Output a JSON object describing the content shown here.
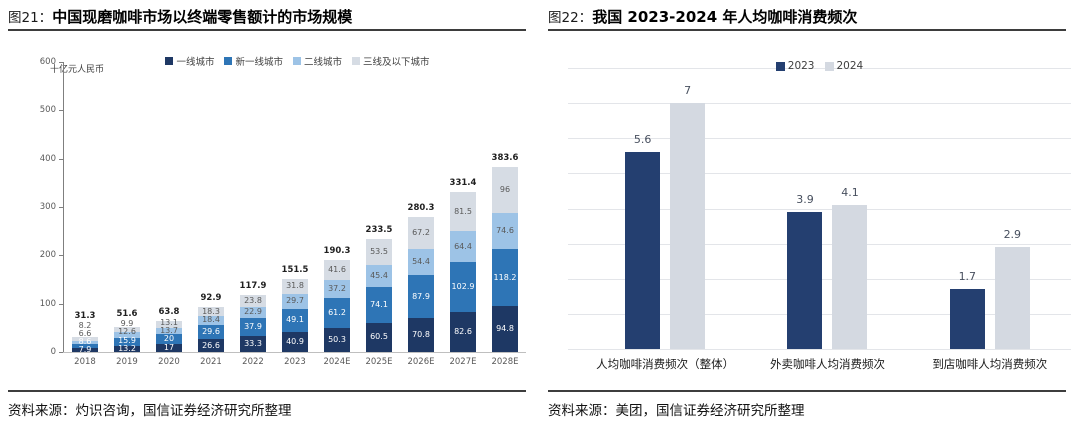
{
  "panels": [
    {
      "figure_label": "图21：",
      "title": "中国现磨咖啡市场以终端零售额计的市场规模",
      "source": "资料来源：灼识咨询，国信证券经济研究所整理"
    },
    {
      "figure_label": "图22：",
      "title": "我国 2023-2024 年人均咖啡消费频次",
      "source": "资料来源：美团，国信证券经济研究所整理"
    }
  ],
  "chart_data": [
    {
      "type": "bar",
      "stacked": true,
      "title": "中国现磨咖啡市场以终端零售额计的市场规模",
      "unit_label": "十亿元人民币",
      "categories": [
        "2018",
        "2019",
        "2020",
        "2021",
        "2022",
        "2023",
        "2024E",
        "2025E",
        "2026E",
        "2027E",
        "2028E"
      ],
      "series": [
        {
          "name": "一线城市",
          "color": "#1e3864",
          "label_color": "#ffffff",
          "values": [
            7.9,
            13.2,
            17,
            26.6,
            33.3,
            40.9,
            50.3,
            60.5,
            70.8,
            82.6,
            94.8
          ]
        },
        {
          "name": "新一线城市",
          "color": "#2e75b6",
          "label_color": "#ffffff",
          "values": [
            8.6,
            15.9,
            20,
            29.6,
            37.9,
            49.1,
            61.2,
            74.1,
            87.9,
            102.9,
            118.2
          ]
        },
        {
          "name": "二线城市",
          "color": "#9dc3e6",
          "label_color": "#595959",
          "values": [
            6.6,
            12.6,
            13.7,
            18.4,
            22.9,
            29.7,
            37.2,
            45.4,
            54.4,
            64.4,
            74.6
          ]
        },
        {
          "name": "三线及以下城市",
          "color": "#d6dce4",
          "label_color": "#595959",
          "values": [
            8.2,
            9.9,
            13.1,
            18.3,
            23.8,
            31.8,
            41.6,
            53.5,
            67.2,
            81.5,
            96
          ]
        }
      ],
      "totals": [
        31.3,
        51.6,
        63.8,
        92.9,
        117.9,
        151.5,
        190.3,
        233.5,
        280.3,
        331.4,
        383.6
      ],
      "ylim": [
        0,
        600
      ],
      "yticks": [
        0,
        100,
        200,
        300,
        400,
        500,
        600
      ],
      "grid": false,
      "legend_position": "top"
    },
    {
      "type": "bar",
      "stacked": false,
      "title": "我国 2023-2024 年人均咖啡消费频次",
      "categories": [
        "人均咖啡消费频次（整体）",
        "外卖咖啡人均消费频次",
        "到店咖啡人均消费频次"
      ],
      "series": [
        {
          "name": "2023",
          "color": "#243f70",
          "values": [
            5.6,
            3.9,
            1.7
          ]
        },
        {
          "name": "2024",
          "color": "#d4d9e1",
          "values": [
            7,
            4.1,
            2.9
          ]
        }
      ],
      "ylim": [
        0,
        8
      ],
      "grid": true,
      "legend_position": "top"
    }
  ]
}
